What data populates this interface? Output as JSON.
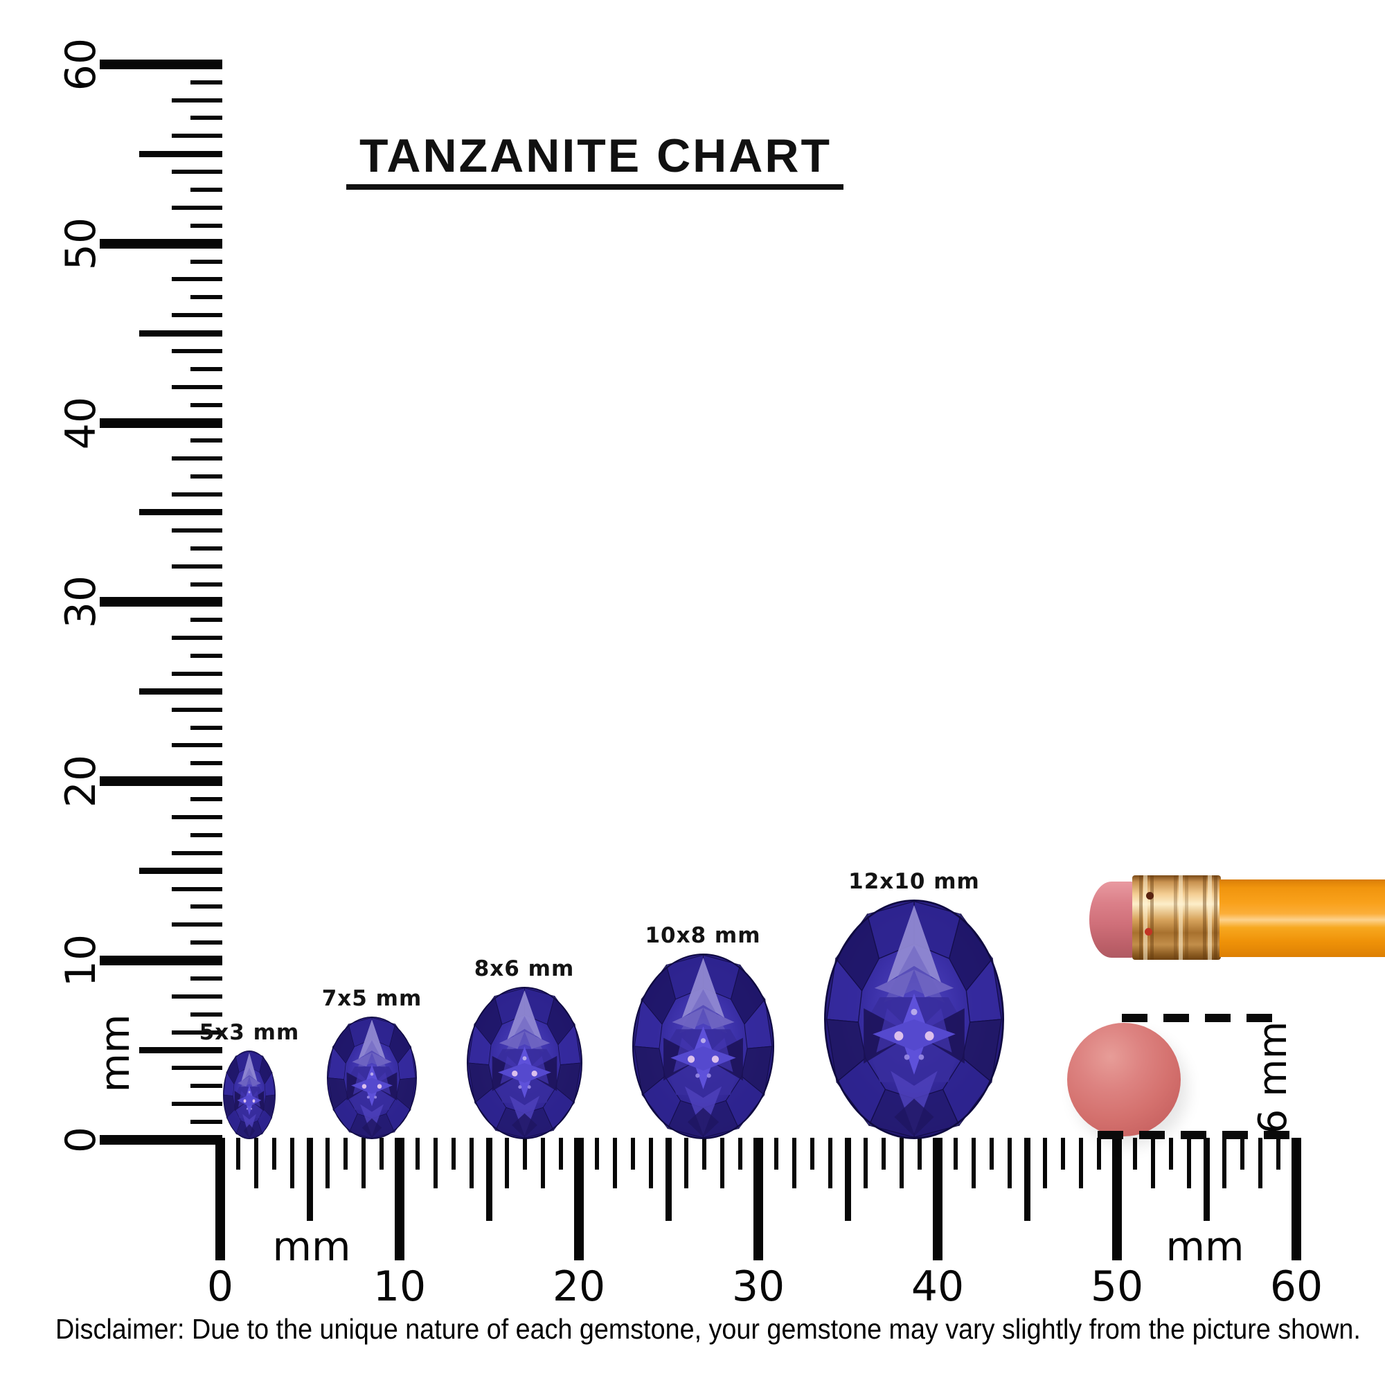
{
  "title": {
    "text": "TANZANITE CHART"
  },
  "gems": [
    {
      "label": "5x3 mm",
      "width_mm": 3,
      "height_mm": 5
    },
    {
      "label": "7x5 mm",
      "width_mm": 5,
      "height_mm": 7
    },
    {
      "label": "8x6 mm",
      "width_mm": 6,
      "height_mm": 8
    },
    {
      "label": "10x8 mm",
      "width_mm": 8,
      "height_mm": 10
    },
    {
      "label": "12x10 mm",
      "width_mm": 10,
      "height_mm": 12
    }
  ],
  "rulers": {
    "unit": "mm",
    "vertical": {
      "tick_labels": [
        "0",
        "10",
        "20",
        "30",
        "40",
        "50",
        "60"
      ],
      "unit_label": "mm"
    },
    "horizontal": {
      "tick_labels": [
        "0",
        "10",
        "20",
        "30",
        "40",
        "50",
        "60"
      ],
      "unit_label_left": "mm",
      "unit_label_right": "mm"
    }
  },
  "eraser_measure": {
    "label": "6 mm"
  },
  "disclaimer": "Disclaimer: Due to the unique nature of each gemstone, your gemstone may vary slightly from the picture shown.",
  "colors": {
    "ink": "#070707",
    "gem_primary": "#4a3fbc",
    "gem_dark": "#1b1256",
    "gem_light": "#9089d2",
    "gem_sparkle": "#dcc0ec",
    "pencil_body_orange": "#f9a11b",
    "ferrule_gold": "#d8a55e",
    "eraser_pink": "#d0707a",
    "eraser_disc_red": "#d4716e"
  }
}
